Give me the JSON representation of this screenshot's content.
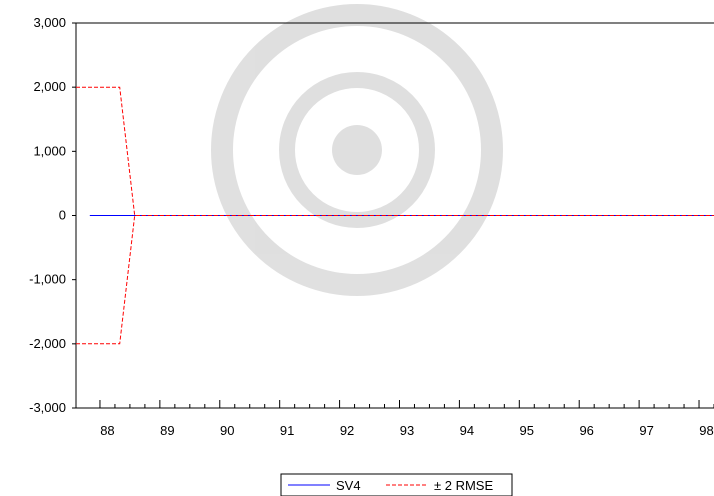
{
  "chart_data": {
    "type": "line",
    "title": "",
    "xlabel": "",
    "ylabel": "",
    "x_tick_labels": [
      "88",
      "89",
      "90",
      "91",
      "92",
      "93",
      "94",
      "95",
      "96",
      "97",
      "98"
    ],
    "y_tick_labels": [
      "3,000",
      "2,000",
      "1,000",
      "0",
      "-1,000",
      "-2,000",
      "-3,000"
    ],
    "y_ticks": [
      3000,
      2000,
      1000,
      0,
      -1000,
      -2000,
      -3000
    ],
    "xlim": [
      87.6,
      98.25
    ],
    "ylim": [
      -3000,
      3000
    ],
    "grid": false,
    "legend_position": "bottom-center",
    "series": [
      {
        "name": "SV4",
        "color": "#0000ff",
        "style": "solid",
        "x": [
          87.83,
          98.25
        ],
        "values": [
          0,
          0
        ]
      },
      {
        "name": "± 2 RMSE",
        "color": "#ff0000",
        "style": "dashed",
        "x": [
          87.6,
          88.33,
          88.58,
          98.25
        ],
        "values": [
          2000,
          2000,
          0,
          0
        ]
      },
      {
        "name": "± 2 RMSE",
        "color": "#ff0000",
        "style": "dashed",
        "x": [
          87.6,
          88.33,
          88.58,
          98.25
        ],
        "values": [
          -2000,
          -2000,
          0,
          0
        ]
      }
    ]
  }
}
